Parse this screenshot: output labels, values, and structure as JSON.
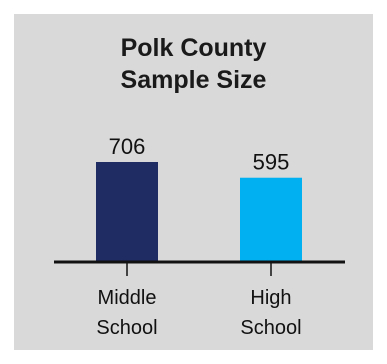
{
  "chart_data": {
    "type": "bar",
    "title_lines": [
      "Polk County",
      "Sample Size"
    ],
    "categories": [
      [
        "Middle",
        "School"
      ],
      [
        "High",
        "School"
      ]
    ],
    "values": [
      706,
      595
    ],
    "value_labels": [
      "706",
      "595"
    ],
    "colors": [
      "#1f2b63",
      "#00b0f0"
    ],
    "ylim": [
      0,
      706
    ],
    "grid": false,
    "legend": "none"
  }
}
